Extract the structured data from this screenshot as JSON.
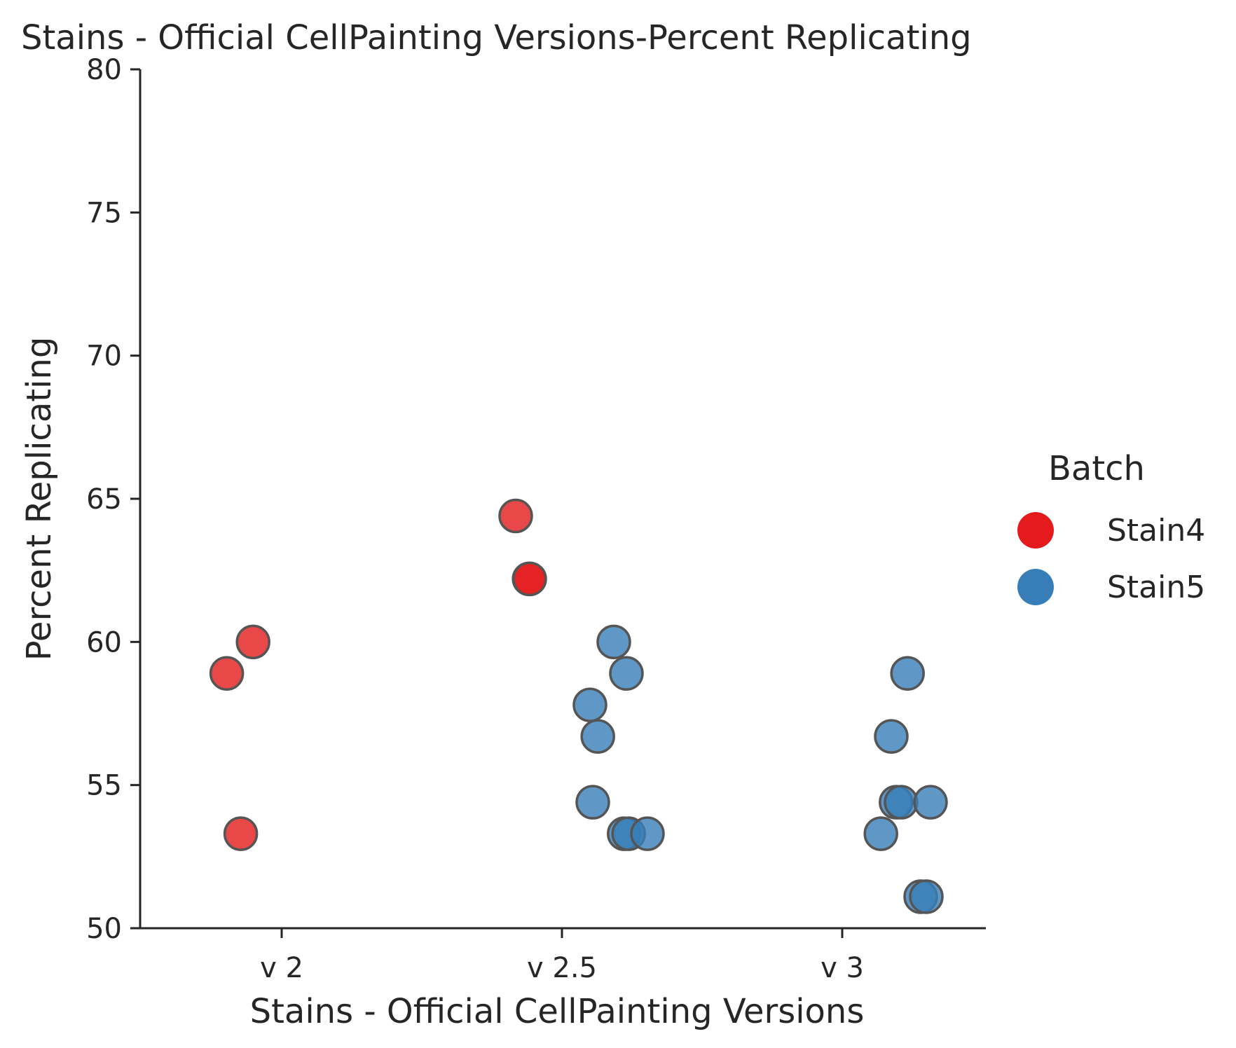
{
  "chart_data": {
    "type": "scatter",
    "title": "Stains - Official CellPainting Versions-Percent Replicating",
    "xlabel": "Stains - Official CellPainting Versions",
    "ylabel": "Percent Replicating",
    "categories": [
      "v 2",
      "v 2.5",
      "v 3"
    ],
    "ylim": [
      50,
      80
    ],
    "yticks": [
      50,
      55,
      60,
      65,
      70,
      75,
      80
    ],
    "grid": false,
    "legend": {
      "title": "Batch",
      "placement": "right",
      "entries": [
        {
          "label": "Stain4",
          "color": "#e41a1c"
        },
        {
          "label": "Stain5",
          "color": "#377eb8"
        }
      ]
    },
    "series": [
      {
        "name": "Stain4",
        "color": "#e41a1c",
        "points": [
          {
            "category": "v 2",
            "jitter": -0.196,
            "y": 58.9
          },
          {
            "category": "v 2",
            "jitter": -0.102,
            "y": 60.0
          },
          {
            "category": "v 2",
            "jitter": -0.146,
            "y": 53.3
          },
          {
            "category": "v 2.5",
            "jitter": -0.165,
            "y": 64.4
          },
          {
            "category": "v 2.5",
            "jitter": -0.117,
            "y": 62.2
          },
          {
            "category": "v 2.5",
            "jitter": -0.115,
            "y": 62.2
          }
        ]
      },
      {
        "name": "Stain5",
        "color": "#377eb8",
        "points": [
          {
            "category": "v 2.5",
            "jitter": 0.185,
            "y": 60.0
          },
          {
            "category": "v 2.5",
            "jitter": 0.23,
            "y": 58.9
          },
          {
            "category": "v 2.5",
            "jitter": 0.1,
            "y": 57.8
          },
          {
            "category": "v 2.5",
            "jitter": 0.128,
            "y": 56.7
          },
          {
            "category": "v 2.5",
            "jitter": 0.11,
            "y": 54.4
          },
          {
            "category": "v 2.5",
            "jitter": 0.222,
            "y": 53.3
          },
          {
            "category": "v 2.5",
            "jitter": 0.238,
            "y": 53.3
          },
          {
            "category": "v 2.5",
            "jitter": 0.305,
            "y": 53.3
          },
          {
            "category": "v 3",
            "jitter": 0.233,
            "y": 58.9
          },
          {
            "category": "v 3",
            "jitter": 0.175,
            "y": 56.7
          },
          {
            "category": "v 3",
            "jitter": 0.192,
            "y": 54.4
          },
          {
            "category": "v 3",
            "jitter": 0.21,
            "y": 54.4
          },
          {
            "category": "v 3",
            "jitter": 0.315,
            "y": 54.4
          },
          {
            "category": "v 3",
            "jitter": 0.138,
            "y": 53.3
          },
          {
            "category": "v 3",
            "jitter": 0.28,
            "y": 51.1
          },
          {
            "category": "v 3",
            "jitter": 0.3,
            "y": 51.1
          }
        ]
      }
    ]
  }
}
